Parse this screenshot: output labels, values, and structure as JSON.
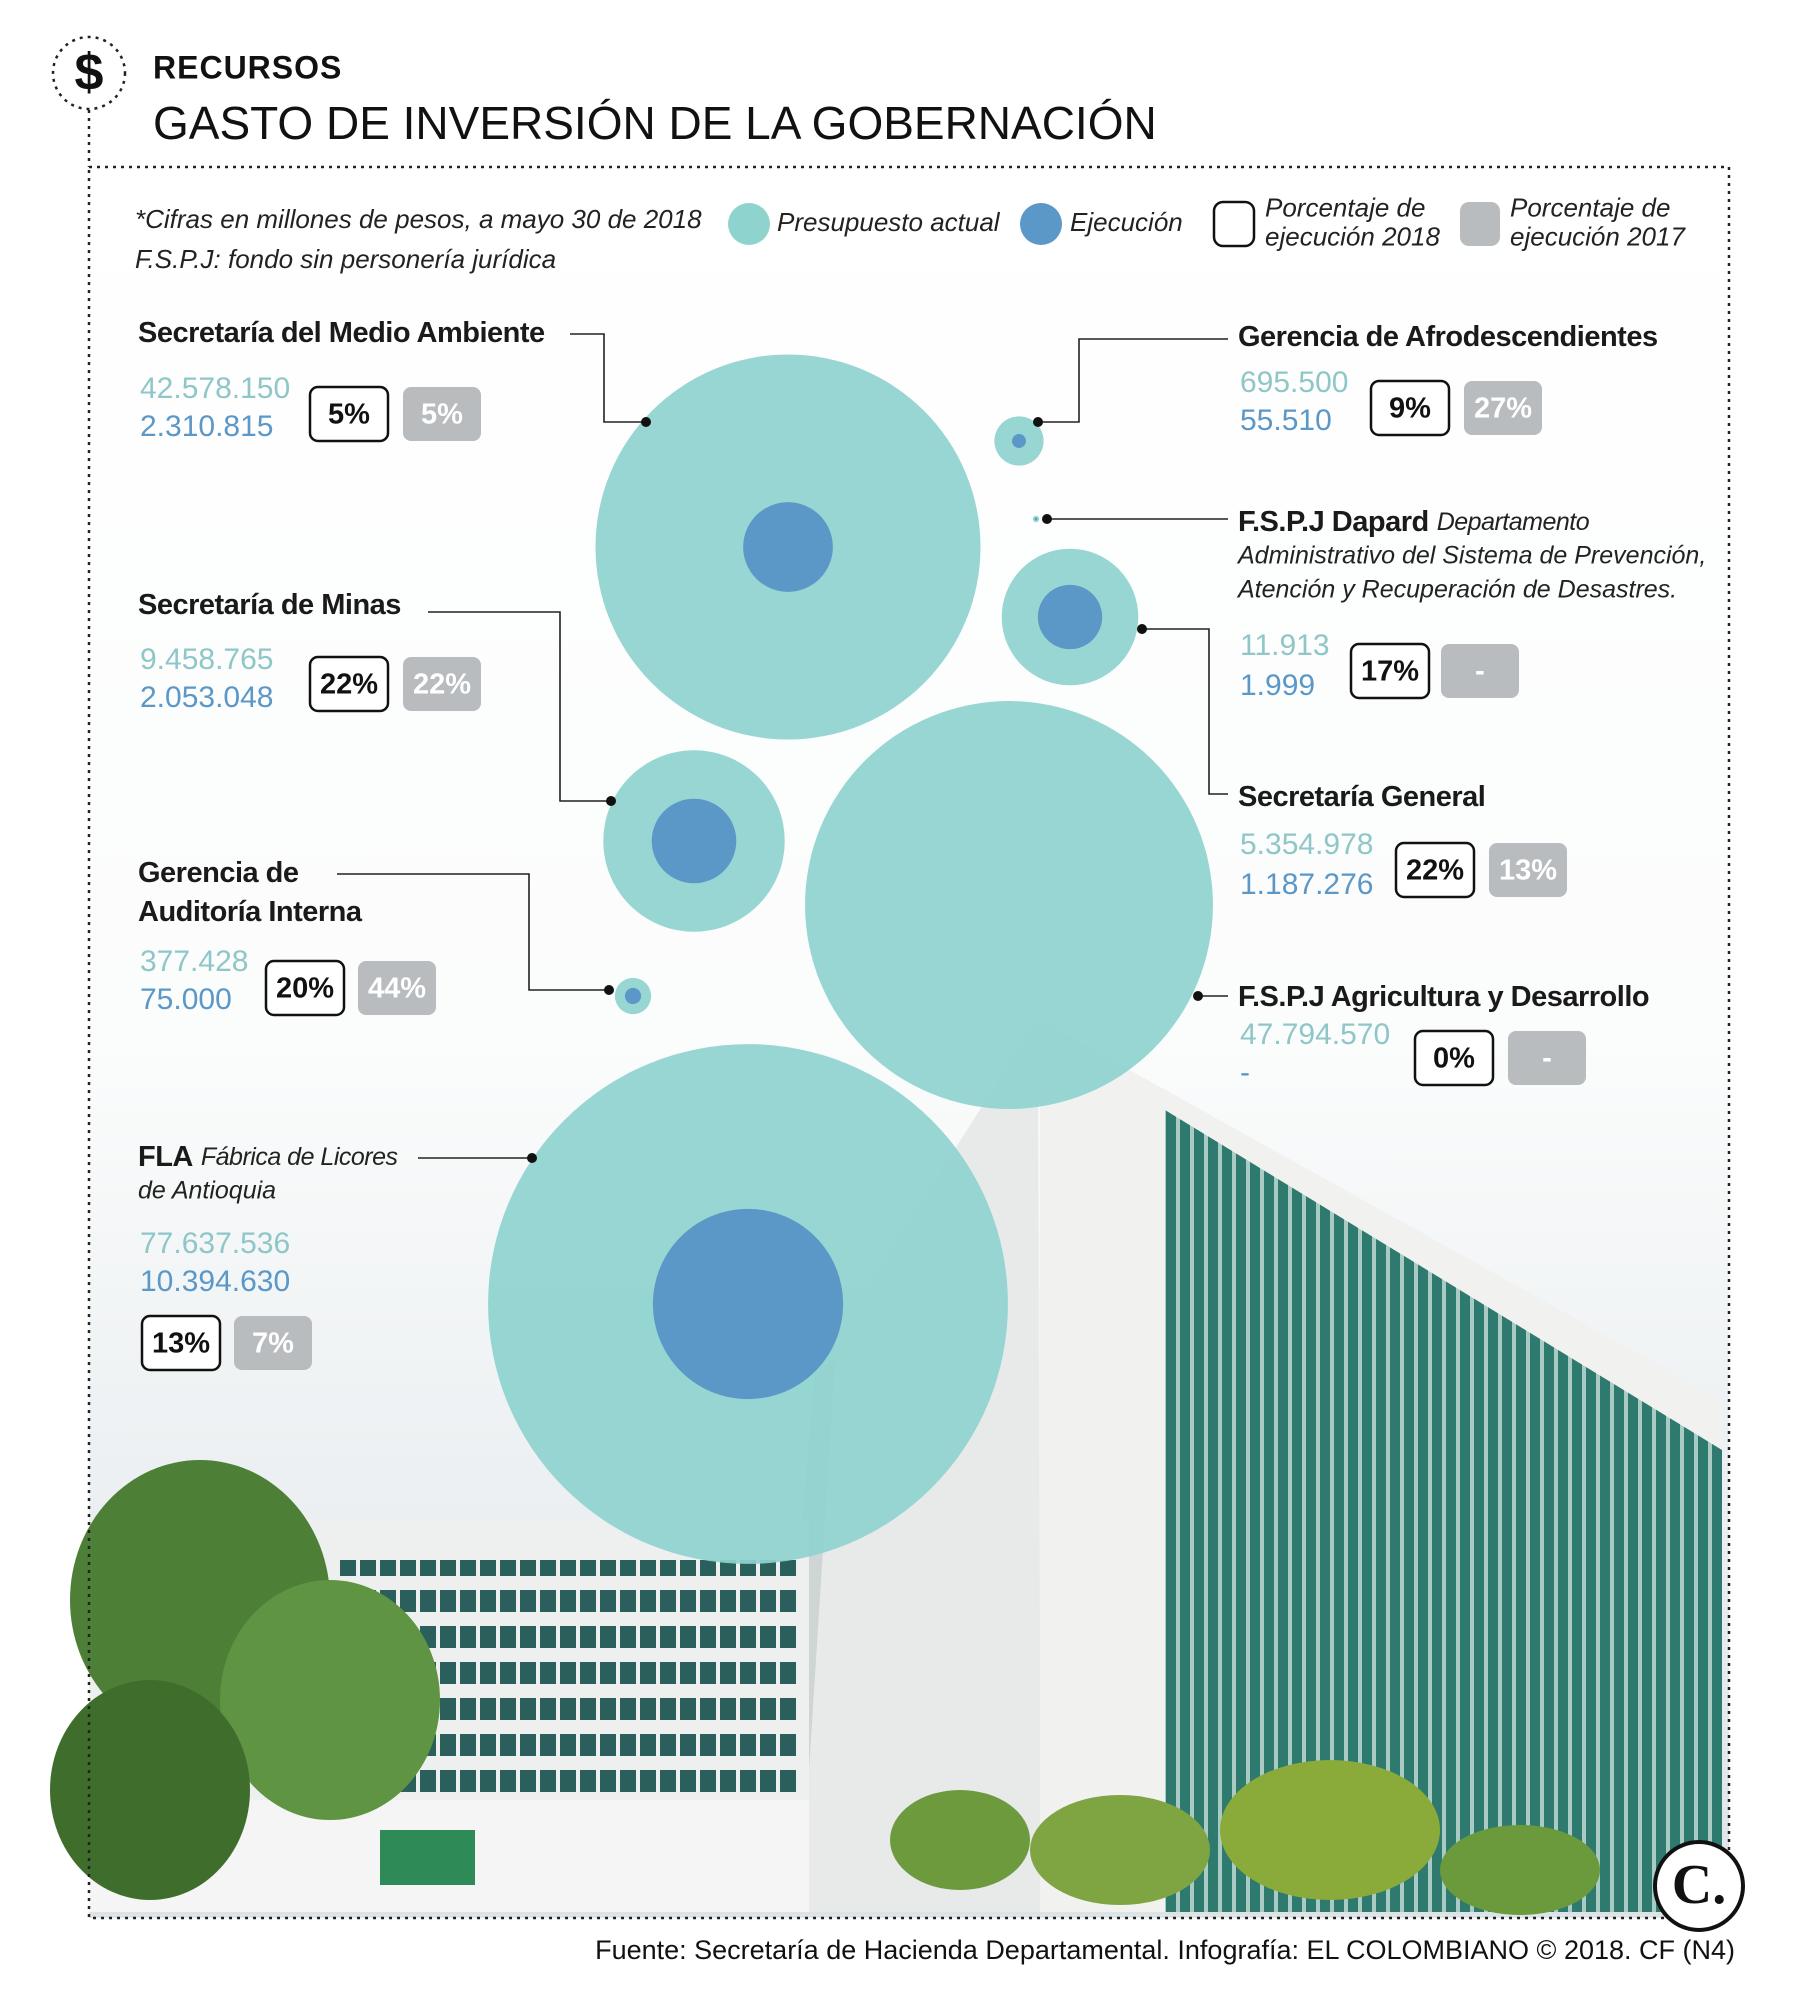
{
  "chart_data": {
    "type": "bubble",
    "icon": "$",
    "kicker": "RECURSOS",
    "title": "GASTO DE INVERSIÓN DE LA GOBERNACIÓN",
    "notes": [
      "*Cifras en millones de pesos, a mayo 30 de 2018",
      "F.S.P.J: fondo sin personería jurídica"
    ],
    "legend": [
      {
        "label": [
          "Presupuesto actual"
        ],
        "color": "#8fd3cf"
      },
      {
        "label": [
          "Ejecución"
        ],
        "color": "#5b97c7"
      },
      {
        "label": [
          "Porcentaje de",
          "ejecución 2018"
        ],
        "color": "#ffffff"
      },
      {
        "label": [
          "Porcentaje de",
          "ejecución 2017"
        ],
        "color": "#b9bcbf"
      }
    ],
    "items": [
      {
        "name": [
          "Secretaría del Medio Ambiente"
        ],
        "budget": 42578150,
        "budget_label": "42.578.150",
        "execution": 2310815,
        "execution_label": "2.310.815",
        "pct2018": 5,
        "pct2018_label": "5%",
        "pct2017": 5,
        "pct2017_label": "5%"
      },
      {
        "name": [
          "Gerencia de Afrodescendientes"
        ],
        "budget": 695500,
        "budget_label": "695.500",
        "execution": 55510,
        "execution_label": "55.510",
        "pct2018": 9,
        "pct2018_label": "9%",
        "pct2017": 27,
        "pct2017_label": "27%"
      },
      {
        "name": [
          "F.S.P.J Dapard"
        ],
        "description": [
          "Departamento",
          "Administrativo del Sistema de Prevención,",
          "Atención y Recuperación de Desastres."
        ],
        "budget": 11913,
        "budget_label": "11.913",
        "execution": 1999,
        "execution_label": "1.999",
        "pct2018": 17,
        "pct2018_label": "17%",
        "pct2017": null,
        "pct2017_label": "-"
      },
      {
        "name": [
          "Secretaría de Minas"
        ],
        "budget": 9458765,
        "budget_label": "9.458.765",
        "execution": 2053048,
        "execution_label": "2.053.048",
        "pct2018": 22,
        "pct2018_label": "22%",
        "pct2017": 22,
        "pct2017_label": "22%"
      },
      {
        "name": [
          "Secretaría General"
        ],
        "budget": 5354978,
        "budget_label": "5.354.978",
        "execution": 1187276,
        "execution_label": "1.187.276",
        "pct2018": 22,
        "pct2018_label": "22%",
        "pct2017": 13,
        "pct2017_label": "13%"
      },
      {
        "name": [
          "F.S.P.J Agricultura y Desarrollo"
        ],
        "budget": 47794570,
        "budget_label": "47.794.570",
        "execution": null,
        "execution_label": "-",
        "pct2018": 0,
        "pct2018_label": "0%",
        "pct2017": null,
        "pct2017_label": "-"
      },
      {
        "name": [
          "Gerencia de",
          "Auditoría Interna"
        ],
        "budget": 377428,
        "budget_label": "377.428",
        "execution": 75000,
        "execution_label": "75.000",
        "pct2018": 20,
        "pct2018_label": "20%",
        "pct2017": 44,
        "pct2017_label": "44%"
      },
      {
        "name": [
          "FLA"
        ],
        "description": [
          "Fábrica de Licores",
          "de Antioquia"
        ],
        "budget": 77637536,
        "budget_label": "77.637.536",
        "execution": 10394630,
        "execution_label": "10.394.630",
        "pct2018": 13,
        "pct2018_label": "13%",
        "pct2017": 7,
        "pct2017_label": "7%"
      }
    ],
    "logo": "C.",
    "source": "Fuente: Secretaría de Hacienda Departamental. Infografía: EL COLOMBIANO © 2018. CF (N4)"
  }
}
